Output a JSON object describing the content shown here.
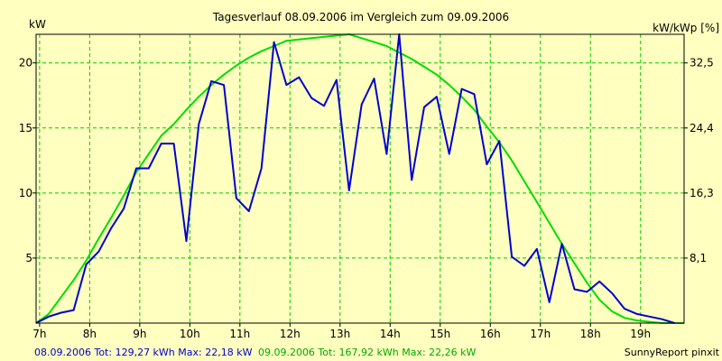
{
  "chart_data": {
    "type": "line",
    "title": "Tagesverlauf 08.09.2006 im Vergleich zum 09.09.2006",
    "ylabel": "kW",
    "y2label": "kW/kWp [%]",
    "x_ticks": [
      "7h",
      "8h",
      "9h",
      "10h",
      "11h",
      "12h",
      "13h",
      "14h",
      "15h",
      "16h",
      "17h",
      "18h",
      "19h"
    ],
    "y_ticks": [
      "5",
      "10",
      "15",
      "20"
    ],
    "y2_ticks": [
      "8,1",
      "16,3",
      "24,4",
      "32,5"
    ],
    "xlim": [
      6.93,
      19.87
    ],
    "ylim": [
      0,
      22.2
    ],
    "grid": true,
    "series": [
      {
        "name": "08.09.2006",
        "color": "#0000d0",
        "x": [
          6.93,
          7.18,
          7.43,
          7.68,
          7.93,
          8.18,
          8.43,
          8.68,
          8.93,
          9.18,
          9.43,
          9.68,
          9.93,
          10.18,
          10.43,
          10.68,
          10.93,
          11.18,
          11.43,
          11.68,
          11.93,
          12.18,
          12.43,
          12.68,
          12.93,
          13.18,
          13.43,
          13.68,
          13.93,
          14.18,
          14.43,
          14.68,
          14.93,
          15.18,
          15.43,
          15.68,
          15.93,
          16.18,
          16.43,
          16.68,
          16.93,
          17.18,
          17.43,
          17.68,
          17.93,
          18.18,
          18.43,
          18.68,
          18.93,
          19.18,
          19.43,
          19.68
        ],
        "values": [
          0.0,
          0.5,
          0.8,
          1.0,
          4.5,
          5.5,
          7.3,
          8.8,
          11.9,
          11.9,
          13.8,
          13.8,
          6.3,
          15.3,
          18.6,
          18.3,
          9.6,
          8.6,
          11.9,
          21.6,
          18.3,
          18.9,
          17.3,
          16.7,
          18.7,
          10.2,
          16.8,
          18.8,
          13.0,
          22.2,
          11.0,
          16.6,
          17.4,
          13.0,
          18.0,
          17.6,
          12.2,
          14.0,
          5.1,
          4.4,
          5.7,
          1.6,
          6.1,
          2.6,
          2.4,
          3.2,
          2.3,
          1.1,
          0.7,
          0.5,
          0.3,
          0.0
        ],
        "tot": "129,27 kWh",
        "max": "22,18 kW"
      },
      {
        "name": "09.09.2006",
        "color": "#00dd00",
        "x": [
          6.93,
          7.18,
          7.43,
          7.68,
          7.93,
          8.18,
          8.43,
          8.68,
          8.93,
          9.18,
          9.43,
          9.68,
          9.93,
          10.18,
          10.43,
          10.68,
          10.93,
          11.18,
          11.43,
          11.68,
          11.93,
          12.18,
          12.43,
          12.68,
          12.93,
          13.18,
          13.43,
          13.68,
          13.93,
          14.18,
          14.43,
          14.68,
          14.93,
          15.18,
          15.43,
          15.68,
          15.93,
          16.18,
          16.43,
          16.68,
          16.93,
          17.18,
          17.43,
          17.68,
          17.93,
          18.18,
          18.43,
          18.68,
          18.93,
          19.18,
          19.43,
          19.68,
          19.87
        ],
        "values": [
          0.0,
          0.7,
          2.0,
          3.3,
          4.8,
          6.5,
          8.1,
          9.8,
          11.6,
          13.0,
          14.4,
          15.3,
          16.4,
          17.4,
          18.3,
          19.1,
          19.8,
          20.4,
          20.9,
          21.3,
          21.7,
          21.8,
          21.9,
          22.0,
          22.1,
          22.2,
          21.9,
          21.6,
          21.3,
          20.8,
          20.3,
          19.7,
          19.1,
          18.3,
          17.4,
          16.4,
          15.1,
          13.9,
          12.5,
          10.9,
          9.3,
          7.7,
          6.1,
          4.6,
          3.1,
          1.8,
          0.9,
          0.4,
          0.2,
          0.1,
          0.0,
          0.0,
          0.0
        ],
        "tot": "167,92 kWh",
        "max": "22,26 kW"
      }
    ]
  },
  "footer": {
    "s1_text": "08.09.2006 Tot: 129,27 kWh Max: 22,18 kW",
    "s2_text": "09.09.2006 Tot: 167,92 kWh Max: 22,26 kW",
    "credit": "SunnyReport pinxit"
  },
  "colors": {
    "background": "#ffffc0",
    "grid": "#00cc00",
    "axis": "#000000"
  }
}
